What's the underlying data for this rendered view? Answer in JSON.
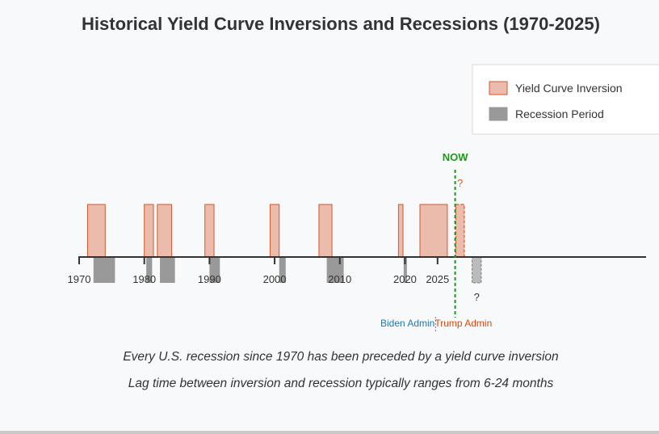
{
  "title": "Historical Yield Curve Inversions and Recessions (1970-2025)",
  "chart_data": {
    "type": "bar",
    "xlim": [
      1970,
      2057
    ],
    "ticks": [
      1970,
      1980,
      1990,
      2000,
      2010,
      2020,
      2025
    ],
    "inversions": [
      {
        "start": 1971.3,
        "end": 1974.0
      },
      {
        "start": 1980.0,
        "end": 1981.4
      },
      {
        "start": 1982.0,
        "end": 1984.2
      },
      {
        "start": 1989.3,
        "end": 1990.7
      },
      {
        "start": 1999.3,
        "end": 2000.7
      },
      {
        "start": 2006.8,
        "end": 2008.8
      },
      {
        "start": 2019.0,
        "end": 2019.7
      },
      {
        "start": 2022.3,
        "end": 2026.5
      }
    ],
    "projected_inversion": {
      "start": 2027.8,
      "end": 2029.1,
      "label": "?"
    },
    "recessions": [
      {
        "start": 1972.2,
        "end": 1975.5
      },
      {
        "start": 1980.3,
        "end": 1981.2
      },
      {
        "start": 1982.4,
        "end": 1984.7
      },
      {
        "start": 1990.0,
        "end": 1991.6
      },
      {
        "start": 2000.7,
        "end": 2001.7
      },
      {
        "start": 2008.0,
        "end": 2010.6
      },
      {
        "start": 2019.8,
        "end": 2020.3
      }
    ],
    "projected_recession": {
      "start": 2030.3,
      "end": 2031.7,
      "label": "?"
    },
    "now": {
      "x": 2027.7,
      "label": "NOW"
    },
    "admin_boundary": {
      "x": 2024.7
    },
    "admins": [
      {
        "label": "Biden Admin",
        "color": "#1f77b4"
      },
      {
        "label": "Trump Admin",
        "color": "#d4490f"
      }
    ],
    "legend": [
      {
        "label": "Yield Curve Inversion",
        "fill": "#ebbcac",
        "stroke": "#d4572e"
      },
      {
        "label": "Recession Period",
        "fill": "#999999",
        "stroke": "#999999"
      }
    ],
    "legend_position": "top-right"
  },
  "captions": [
    "Every U.S. recession since 1970 has been preceded by a yield curve inversion",
    "Lag time between inversion and recession typically ranges from 6-24 months"
  ],
  "colors": {
    "inversion_fill": "#ebbcac",
    "inversion_stroke": "#d4572e",
    "recession_fill": "#999999",
    "now_line": "#1a9a1a",
    "axis": "#333333"
  }
}
